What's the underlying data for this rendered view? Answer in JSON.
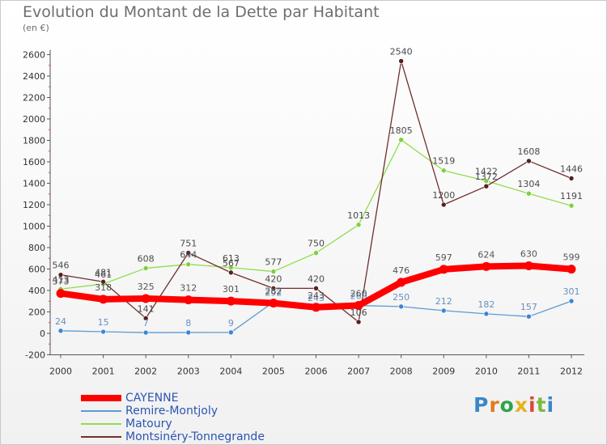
{
  "header": {
    "title": "Evolution du Montant de la Dette par Habitant",
    "subtitle": "(en €)"
  },
  "brand": {
    "letters": [
      "P",
      "r",
      "o",
      "x",
      "i",
      "t",
      "i"
    ],
    "colors": [
      "#3a87c8",
      "#e07b1c",
      "#2da34b",
      "#e8b21b",
      "#d84a3a",
      "#7cba3e",
      "#3a87c8"
    ]
  },
  "chart_data": {
    "type": "line",
    "title": "Evolution du Montant de la Dette par Habitant",
    "subtitle": "(en €)",
    "xlabel": "",
    "ylabel": "",
    "x": [
      "2000",
      "2001",
      "2002",
      "2003",
      "2004",
      "2005",
      "2006",
      "2007",
      "2008",
      "2009",
      "2010",
      "2011",
      "2012"
    ],
    "ylim": [
      -200,
      2600
    ],
    "yticks": [
      -200,
      0,
      200,
      400,
      600,
      800,
      1000,
      1200,
      1400,
      1600,
      1800,
      2000,
      2200,
      2400,
      2600
    ],
    "grid": false,
    "legend": "bottom-left",
    "series": [
      {
        "name": "CAYENNE",
        "color": "#ff0000",
        "values": [
          373,
          318,
          325,
          312,
          301,
          282,
          243,
          260,
          476,
          597,
          624,
          630,
          599
        ]
      },
      {
        "name": "Remire-Montjoly",
        "color": "#5d9bd3",
        "values": [
          24,
          15,
          7,
          8,
          9,
          292,
          243,
          260,
          250,
          212,
          182,
          157,
          301
        ]
      },
      {
        "name": "Matoury",
        "color": "#90dd4c",
        "values": [
          413,
          461,
          608,
          644,
          613,
          577,
          750,
          1013,
          1805,
          1519,
          1422,
          1304,
          1191
        ]
      },
      {
        "name": "Montsinéry-Tonnegrande",
        "color": "#702e2e",
        "values": [
          546,
          481,
          141,
          751,
          567,
          420,
          420,
          106,
          2540,
          1200,
          1372,
          1608,
          1446
        ]
      }
    ]
  }
}
